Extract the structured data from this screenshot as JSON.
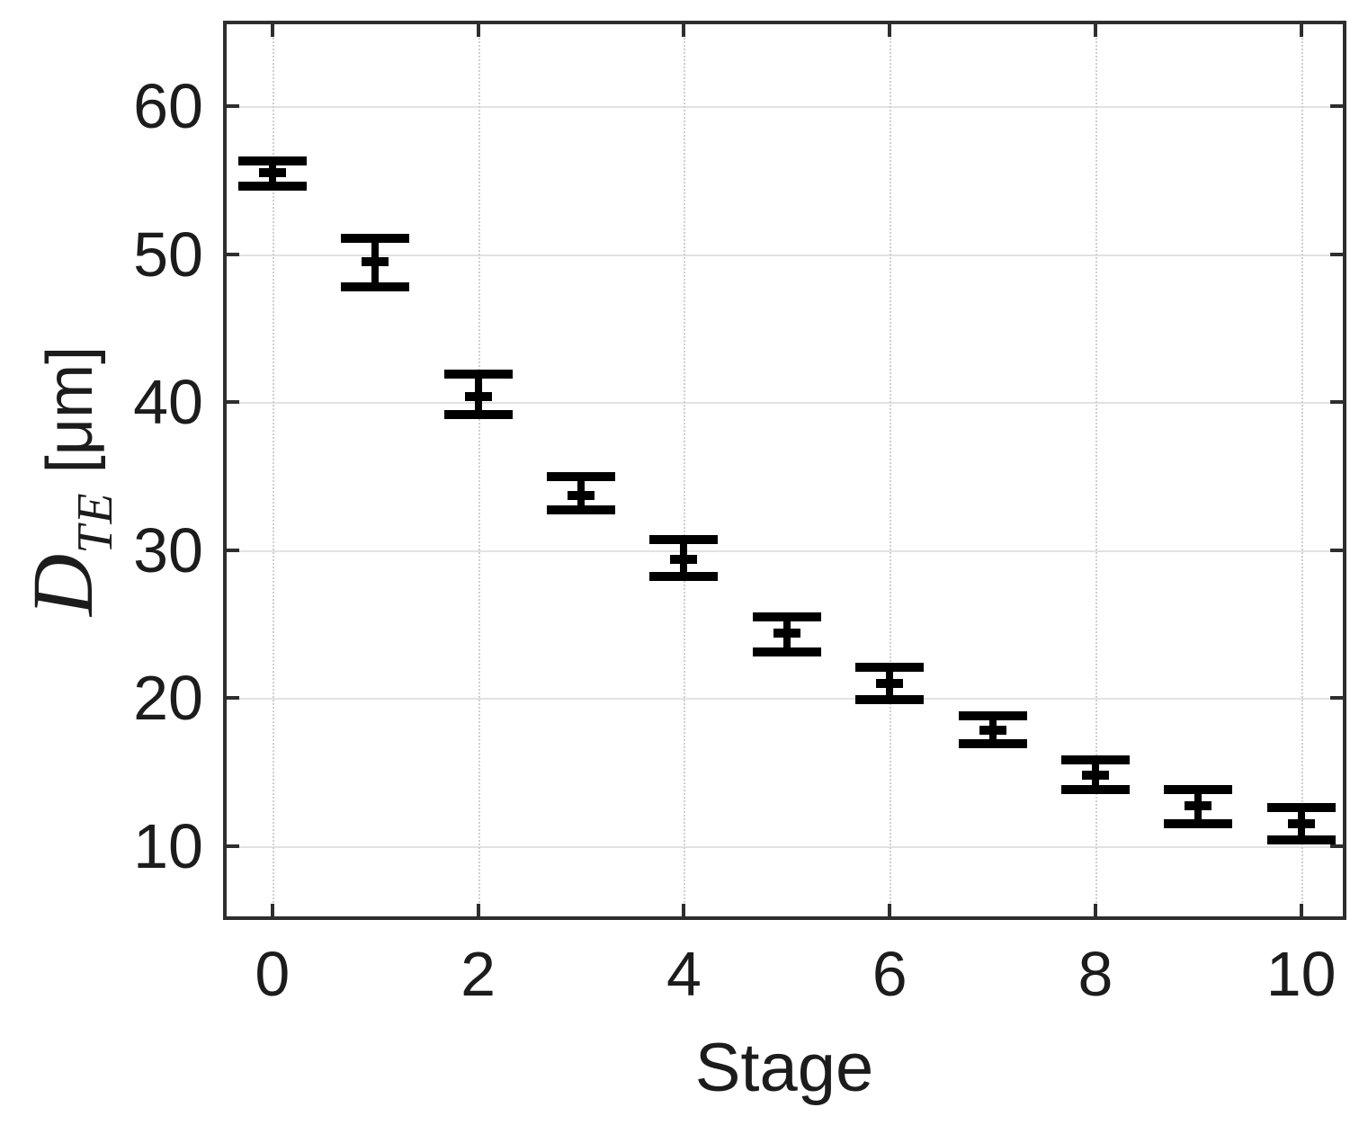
{
  "chart_data": {
    "type": "errorbar",
    "title": "",
    "xlabel": "Stage",
    "ylabel": "D_TE [um]",
    "ylabel_parts": {
      "variable": "D",
      "subscript": "TE",
      "unit": "[μm]"
    },
    "x": [
      0,
      1,
      2,
      3,
      4,
      5,
      6,
      7,
      8,
      9,
      10
    ],
    "y": [
      55.5,
      49.5,
      40.4,
      33.7,
      29.4,
      24.4,
      21.0,
      17.8,
      14.8,
      12.7,
      11.5
    ],
    "err_plus": [
      0.8,
      1.6,
      1.5,
      1.3,
      1.3,
      1.1,
      1.1,
      1.0,
      1.0,
      1.1,
      1.1
    ],
    "err_minus": [
      0.9,
      1.7,
      1.2,
      1.0,
      1.2,
      1.3,
      1.1,
      0.9,
      1.0,
      1.2,
      1.1
    ],
    "xticks": [
      0,
      2,
      4,
      6,
      8,
      10
    ],
    "yticks": [
      10,
      20,
      30,
      40,
      50,
      60
    ],
    "xlim": [
      -0.48,
      10.44
    ],
    "ylim": [
      5.0,
      65.8
    ],
    "grid": true,
    "legend": null,
    "marker": "plus",
    "colors": {
      "series": "#000000",
      "axis": "#2e2e2e",
      "grid_h": "#e2e2e2",
      "grid_v": "#cfcfcf",
      "text": "#1c1c1c",
      "background": "#ffffff"
    }
  }
}
